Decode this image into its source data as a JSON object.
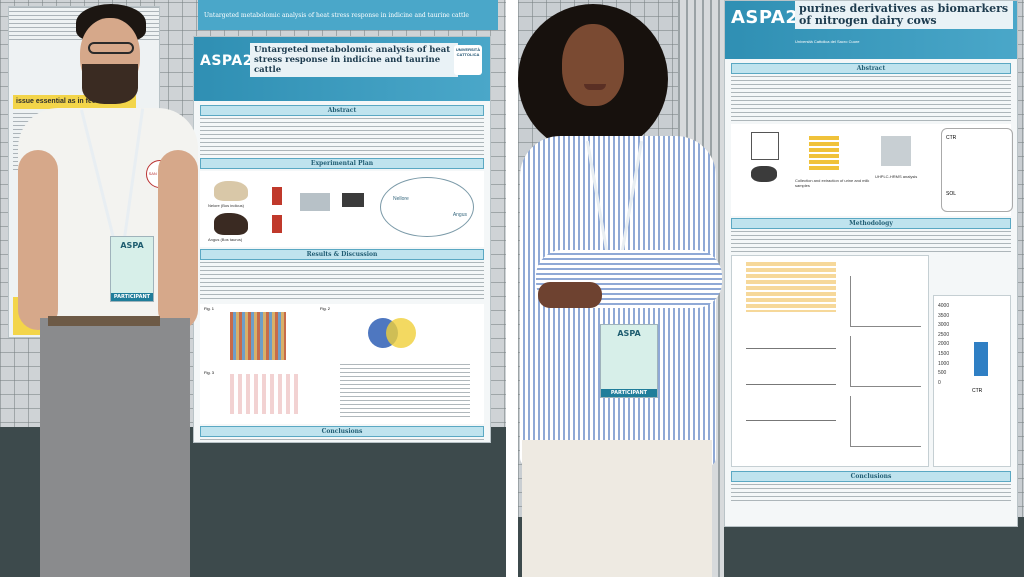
{
  "left": {
    "poster": {
      "conference_logo": "ASPA25",
      "title": "Untargeted metabolomic analysis of heat stress response in indicine and taurine cattle",
      "university": "UNIVERSITÀ CATTOLICA",
      "top_strip_text": "Untargeted metabolomic analysis of heat stress response in indicine and taurine cattle",
      "sections": [
        "Abstract",
        "Experimental Plan",
        "Results & Discussion",
        "Conclusions"
      ],
      "figure_labels": [
        "Nelore (Bos indicus)",
        "Angus (Bos taurus)",
        "Nellore",
        "Angus",
        "Fig. 1",
        "Fig. 2",
        "Fig. 3"
      ]
    },
    "side_poster_text": "issue essential as in feed",
    "badge": {
      "logo": "ASPA",
      "role": "PARTICIPANT"
    },
    "shirt_logo": "SAN PAOLO"
  },
  "right": {
    "poster": {
      "conference_logo": "ASPA25",
      "title": "purines derivatives as biomarkers of nitrogen dairy cows",
      "university": "Università Cattolica del Sacro Cuore",
      "sections": [
        "Abstract",
        "Methodology",
        "Conclusions"
      ],
      "figure_labels": [
        "Collection and extraction of urine and milk samples",
        "UHPLC-HRMS analysis",
        "CTR",
        "SOL"
      ],
      "y_ticks": [
        "4000",
        "3500",
        "3000",
        "2500",
        "2000",
        "1500",
        "1000",
        "500",
        "0"
      ],
      "bar_label": "CTR"
    },
    "badge": {
      "logo": "ASPA",
      "role": "PARTICIPANT"
    }
  },
  "colors": {
    "poster_blue": "#2f8fb3",
    "badge_green": "#d7efe9",
    "floor": "#3d4a4c"
  }
}
